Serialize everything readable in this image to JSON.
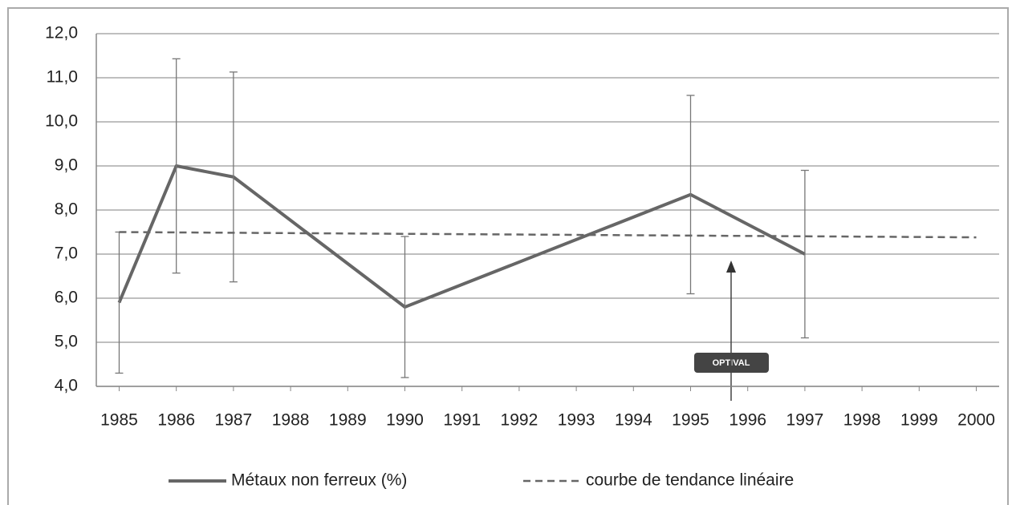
{
  "chart_data": {
    "type": "line",
    "xlim": [
      1984.6,
      2000.4
    ],
    "xticks": [
      1985,
      1986,
      1987,
      1988,
      1989,
      1990,
      1991,
      1992,
      1993,
      1994,
      1995,
      1996,
      1997,
      1998,
      1999,
      2000
    ],
    "ylim": [
      4,
      12
    ],
    "yticks": [
      {
        "value": 4,
        "label": "4,0"
      },
      {
        "value": 5,
        "label": "5,0"
      },
      {
        "value": 6,
        "label": "6,0"
      },
      {
        "value": 7,
        "label": "7,0"
      },
      {
        "value": 8,
        "label": "8,0"
      },
      {
        "value": 9,
        "label": "9,0"
      },
      {
        "value": 10,
        "label": "10,0"
      },
      {
        "value": 11,
        "label": "11,0"
      },
      {
        "value": 12,
        "label": "12,0"
      }
    ],
    "grid": true,
    "legend": "bottom",
    "series": [
      {
        "name": "Métaux non ferreux (%)",
        "color": "#666666",
        "dash": false,
        "x": [
          1985,
          1986,
          1987,
          1990,
          1995,
          1997
        ],
        "values": [
          5.9,
          9.0,
          8.75,
          5.8,
          8.35,
          7.0
        ],
        "errors": [
          1.6,
          2.43,
          2.38,
          1.6,
          2.25,
          1.9
        ]
      },
      {
        "name": "courbe de tendance linéaire",
        "color": "#666666",
        "dash": true,
        "x": [
          1985,
          2000
        ],
        "values": [
          7.5,
          7.38
        ]
      }
    ],
    "annotation": "OPTIVAL"
  }
}
